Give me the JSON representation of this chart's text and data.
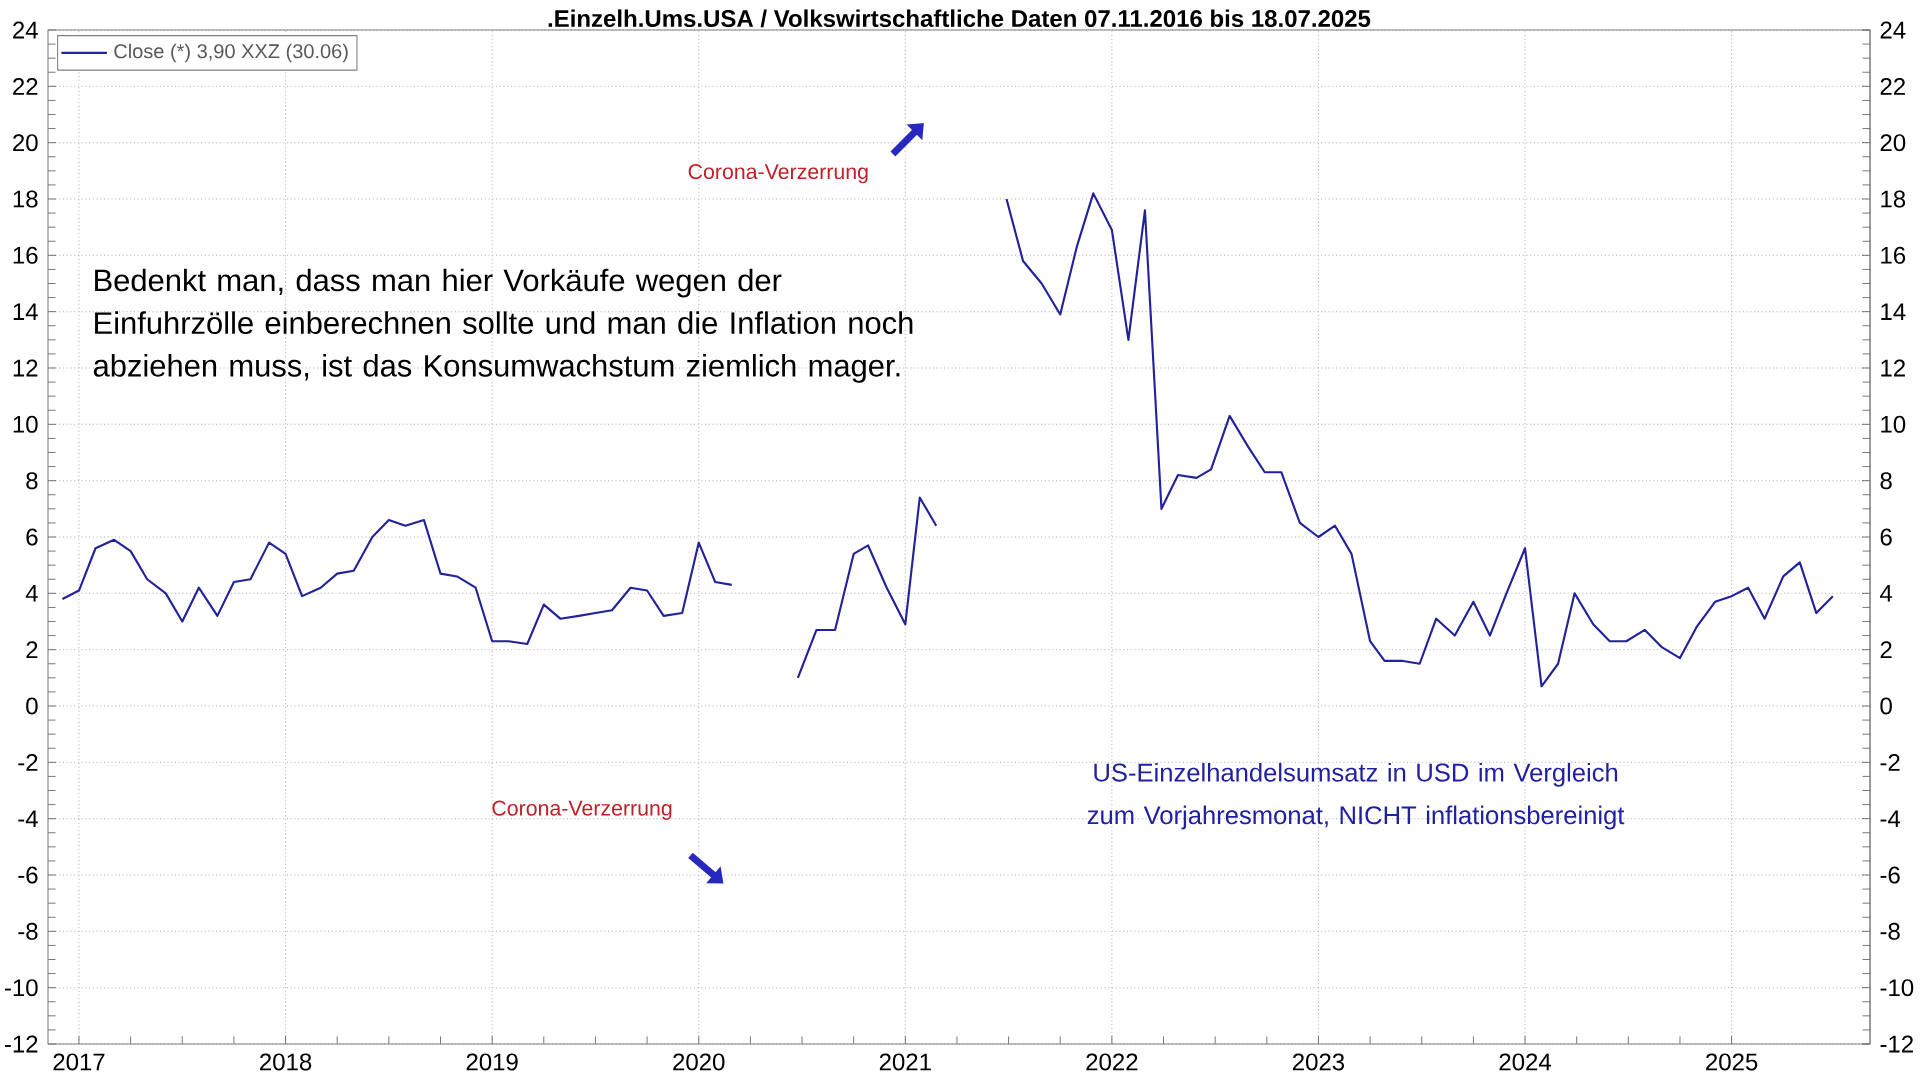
{
  "chart_data": {
    "type": "line",
    "title": ".Einzelh.Ums.USA / Volkswirtschaftliche Daten 07.11.2016 bis 18.07.2025",
    "series": [
      {
        "name": "Close (*) 3,90 XXZ (30.06)",
        "color": "#22229a",
        "x": [
          2016.92,
          2017.0,
          2017.08,
          2017.17,
          2017.25,
          2017.33,
          2017.42,
          2017.5,
          2017.58,
          2017.67,
          2017.75,
          2017.83,
          2017.92,
          2018.0,
          2018.08,
          2018.17,
          2018.25,
          2018.33,
          2018.42,
          2018.5,
          2018.58,
          2018.67,
          2018.75,
          2018.83,
          2018.92,
          2019.0,
          2019.08,
          2019.17,
          2019.25,
          2019.33,
          2019.42,
          2019.5,
          2019.58,
          2019.67,
          2019.75,
          2019.83,
          2019.92,
          2020.0,
          2020.08,
          2020.16,
          2020.26,
          2020.36,
          2020.48,
          2020.57,
          2020.66,
          2020.75,
          2020.82,
          2020.91,
          2021.0,
          2021.07,
          2021.15,
          2021.27,
          2021.37,
          2021.49,
          2021.57,
          2021.66,
          2021.75,
          2021.83,
          2021.91,
          2022.0,
          2022.08,
          2022.16,
          2022.24,
          2022.32,
          2022.41,
          2022.48,
          2022.57,
          2022.66,
          2022.74,
          2022.82,
          2022.91,
          2023.0,
          2023.08,
          2023.16,
          2023.25,
          2023.32,
          2023.41,
          2023.49,
          2023.57,
          2023.66,
          2023.75,
          2023.83,
          2023.91,
          2024.0,
          2024.08,
          2024.16,
          2024.24,
          2024.33,
          2024.41,
          2024.49,
          2024.58,
          2024.66,
          2024.75,
          2024.83,
          2024.92,
          2025.0,
          2025.08,
          2025.16,
          2025.25,
          2025.33,
          2025.41,
          2025.49
        ],
        "values": [
          3.8,
          4.1,
          5.6,
          5.9,
          5.5,
          4.5,
          4.0,
          3.0,
          4.2,
          3.2,
          4.4,
          4.5,
          5.8,
          5.4,
          3.9,
          4.2,
          4.7,
          4.8,
          6.0,
          6.6,
          6.4,
          6.6,
          4.7,
          4.6,
          4.2,
          2.3,
          2.3,
          2.2,
          3.6,
          3.1,
          3.2,
          3.3,
          3.4,
          4.2,
          4.1,
          3.2,
          3.3,
          5.8,
          4.4,
          4.3,
          null,
          null,
          1.0,
          2.7,
          2.7,
          5.4,
          5.7,
          4.2,
          2.9,
          7.4,
          6.4,
          null,
          null,
          18.0,
          15.8,
          15.0,
          13.9,
          16.3,
          18.2,
          16.9,
          13.0,
          17.6,
          7.0,
          8.2,
          8.1,
          8.4,
          10.3,
          9.2,
          8.3,
          8.3,
          6.5,
          6.0,
          6.4,
          5.4,
          2.3,
          1.6,
          1.6,
          1.5,
          3.1,
          2.5,
          3.7,
          2.5,
          4.0,
          5.6,
          0.7,
          1.5,
          4.0,
          2.9,
          2.3,
          2.3,
          2.7,
          2.1,
          1.7,
          2.8,
          3.7,
          3.9,
          4.2,
          3.1,
          4.6,
          5.1,
          3.3,
          3.9
        ]
      }
    ],
    "xlim": [
      2016.85,
      2025.67
    ],
    "xticks": [
      2017,
      2018,
      2019,
      2020,
      2021,
      2022,
      2023,
      2024,
      2025
    ],
    "ylim": [
      -12,
      24
    ],
    "yticks": [
      -12,
      -10,
      -8,
      -6,
      -4,
      -2,
      0,
      2,
      4,
      6,
      8,
      10,
      12,
      14,
      16,
      18,
      20,
      22,
      24
    ],
    "y2lim": [
      -12,
      24
    ],
    "y2ticks": [
      -12,
      -10,
      -8,
      -6,
      -4,
      -2,
      0,
      2,
      4,
      6,
      8,
      10,
      12,
      14,
      16,
      18,
      20,
      22,
      24
    ],
    "grid": true,
    "legend": "top left",
    "annotations": [
      "Bedenkt man, dass man hier Vorkäufe wegen der Einfuhrzölle einberechnen sollte und man die Inflation noch abziehen muss, ist das Konsumwachstum ziemlich mager.",
      "Corona-Verzerrung",
      "Corona-Verzerrung",
      "US-Einzelhandelsumsatz in USD im Vergleich zum Vorjahresmonat, NICHT inflationsbereinigt"
    ]
  }
}
